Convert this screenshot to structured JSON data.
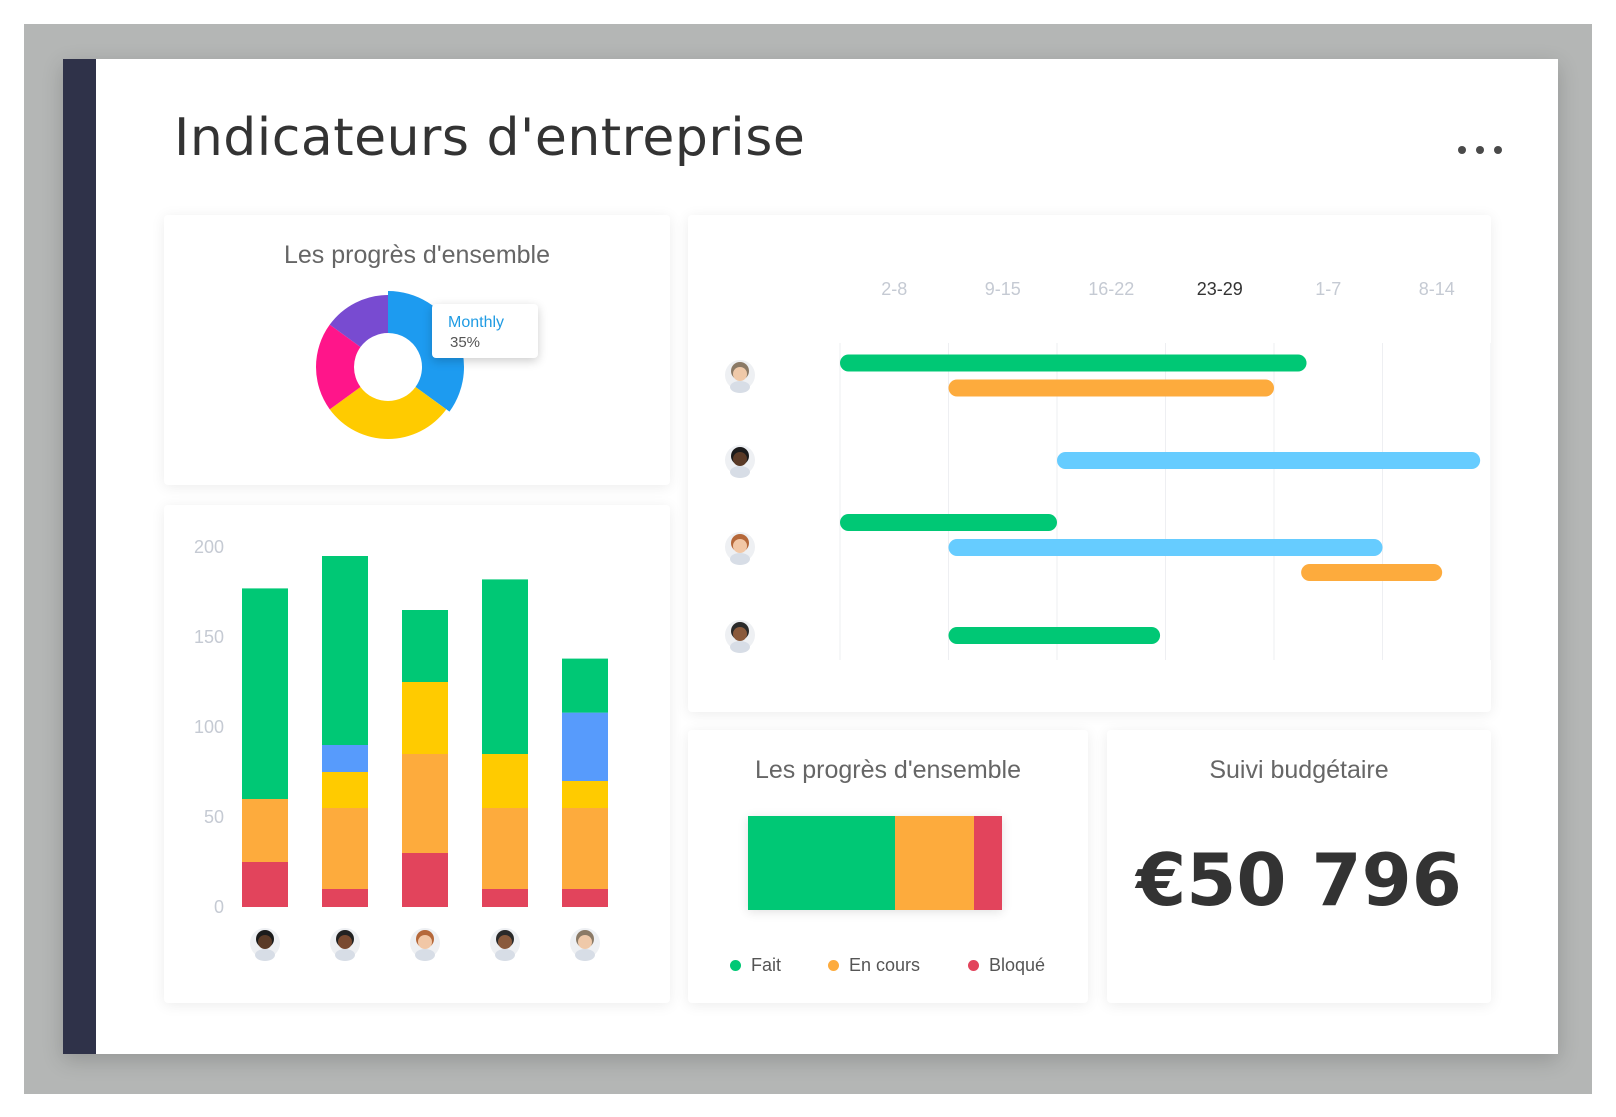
{
  "page": {
    "title": "Indicateurs d'entreprise",
    "more_icon": "more-horizontal-icon"
  },
  "colors": {
    "green": "#00c875",
    "orange": "#fdab3d",
    "red": "#e2445c",
    "yellow": "#ffcb00",
    "blue": "#579bfc",
    "light_blue": "#66ccff",
    "purple": "#784bd1",
    "pink": "#ff158a",
    "donut_blue": "#1d9bf0"
  },
  "donut_card": {
    "title": "Les progrès d'ensemble",
    "tooltip_label": "Monthly",
    "tooltip_value": "35%"
  },
  "progress_card": {
    "title": "Les progrès d'ensemble",
    "legend": [
      "Fait",
      "En cours",
      "Bloqué"
    ]
  },
  "budget_card": {
    "title": "Suivi budgétaire",
    "value": "€50 796"
  },
  "chart_data": [
    {
      "type": "pie",
      "title": "Les progrès d'ensemble",
      "donut": true,
      "slices": [
        {
          "label": "Monthly",
          "value": 35,
          "color": "#1d9bf0",
          "highlighted": true
        },
        {
          "label": "",
          "value": 30,
          "color": "#ffcb00"
        },
        {
          "label": "",
          "value": 20,
          "color": "#ff158a"
        },
        {
          "label": "",
          "value": 15,
          "color": "#784bd1"
        }
      ]
    },
    {
      "type": "bar",
      "stacked": true,
      "ylim": [
        0,
        200
      ],
      "yticks": [
        0,
        50,
        100,
        150,
        200
      ],
      "categories": [
        "avatar-1",
        "avatar-2",
        "avatar-3",
        "avatar-4",
        "avatar-5"
      ],
      "series": [
        {
          "color": "#e2445c",
          "values": [
            25,
            10,
            30,
            10,
            10
          ]
        },
        {
          "color": "#fdab3d",
          "values": [
            35,
            45,
            55,
            45,
            45
          ]
        },
        {
          "color": "#ffcb00",
          "values": [
            0,
            20,
            40,
            30,
            15
          ]
        },
        {
          "color": "#579bfc",
          "values": [
            0,
            15,
            0,
            0,
            38
          ]
        },
        {
          "color": "#00c875",
          "values": [
            117,
            105,
            40,
            97,
            30
          ]
        }
      ]
    },
    {
      "type": "gantt",
      "columns": [
        "2-8",
        "9-15",
        "16-22",
        "23-29",
        "1-7",
        "8-14"
      ],
      "current_column": "23-29",
      "rows": [
        {
          "bars": [
            {
              "start": 0,
              "end": 4.3,
              "color": "#00c875"
            },
            {
              "start": 1.0,
              "end": 4.0,
              "color": "#fdab3d"
            }
          ]
        },
        {
          "bars": [
            {
              "start": 2.0,
              "end": 5.9,
              "color": "#66ccff"
            }
          ]
        },
        {
          "bars": [
            {
              "start": 0,
              "end": 2.0,
              "color": "#00c875"
            },
            {
              "start": 1.0,
              "end": 5.0,
              "color": "#66ccff"
            },
            {
              "start": 4.25,
              "end": 5.55,
              "color": "#fdab3d"
            }
          ]
        },
        {
          "bars": [
            {
              "start": 1.0,
              "end": 2.95,
              "color": "#00c875"
            }
          ]
        }
      ]
    },
    {
      "type": "bar",
      "stacked": true,
      "orientation": "horizontal",
      "title": "Les progrès d'ensemble",
      "series": [
        {
          "name": "Fait",
          "value": 58,
          "color": "#00c875"
        },
        {
          "name": "En cours",
          "value": 31,
          "color": "#fdab3d"
        },
        {
          "name": "Bloqué",
          "value": 11,
          "color": "#e2445c"
        }
      ]
    }
  ],
  "avatars": {
    "bar_chart": [
      {
        "icon": "avatar-person-icon",
        "skin": "#5a3a26",
        "hair": "#1b1b1b"
      },
      {
        "icon": "avatar-person-icon",
        "skin": "#7a4a30",
        "hair": "#222222"
      },
      {
        "icon": "avatar-person-icon",
        "skin": "#f1c7a6",
        "hair": "#b5683a"
      },
      {
        "icon": "avatar-person-icon",
        "skin": "#8a5a3c",
        "hair": "#2a2a2a"
      },
      {
        "icon": "avatar-person-icon",
        "skin": "#efc9a9",
        "hair": "#8b7a66"
      }
    ],
    "gantt": [
      {
        "icon": "avatar-person-icon",
        "skin": "#efc9a9",
        "hair": "#8b7a66"
      },
      {
        "icon": "avatar-person-icon",
        "skin": "#5a3a26",
        "hair": "#1b1b1b"
      },
      {
        "icon": "avatar-person-icon",
        "skin": "#f1c7a6",
        "hair": "#b5683a"
      },
      {
        "icon": "avatar-person-icon",
        "skin": "#8a5a3c",
        "hair": "#2a2a2a"
      }
    ]
  }
}
